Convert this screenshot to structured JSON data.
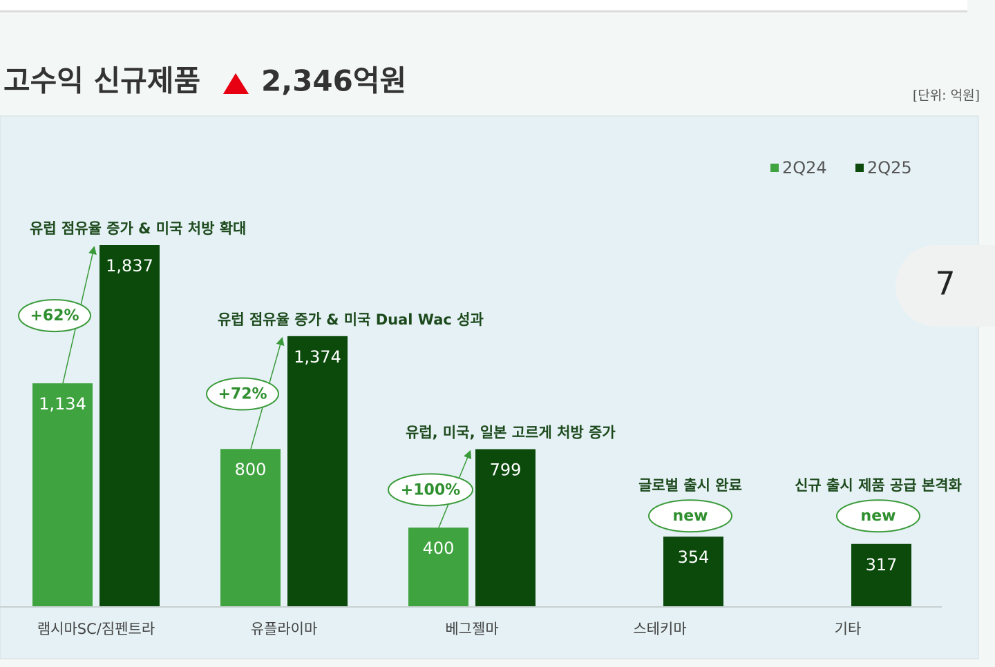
{
  "chart_data": {
    "type": "bar",
    "title": "고수익 신규제품",
    "title_value": "2,346억원",
    "unit": "[단위: 억원]",
    "page_number": "7",
    "categories": [
      "램시마SC/짐펜트라",
      "유플라이마",
      "베그젤마",
      "스테키마",
      "기타"
    ],
    "series": [
      {
        "name": "2Q24",
        "color": "#3fa33f",
        "values": [
          1134,
          800,
          400,
          null,
          null
        ],
        "value_labels": [
          "1,134",
          "800",
          "400",
          null,
          null
        ]
      },
      {
        "name": "2Q25",
        "color": "#0b4a0b",
        "values": [
          1837,
          1374,
          799,
          354,
          317
        ],
        "value_labels": [
          "1,837",
          "1,374",
          "799",
          "354",
          "317"
        ]
      }
    ],
    "annotations": [
      {
        "badge": "+62%",
        "note": "유럽 점유율 증가 & 미국 처방 확대"
      },
      {
        "badge": "+72%",
        "note": "유럽 점유율 증가 & 미국 Dual Wac 성과"
      },
      {
        "badge": "+100%",
        "note": "유럽, 미국, 일본 고르게 처방 증가"
      },
      {
        "badge": "new",
        "note": "글로벌 출시 완료"
      },
      {
        "badge": "new",
        "note": "신규 출시 제품 공급 본격화"
      }
    ],
    "ylim": [
      0,
      2000
    ],
    "legend": "top-right"
  }
}
